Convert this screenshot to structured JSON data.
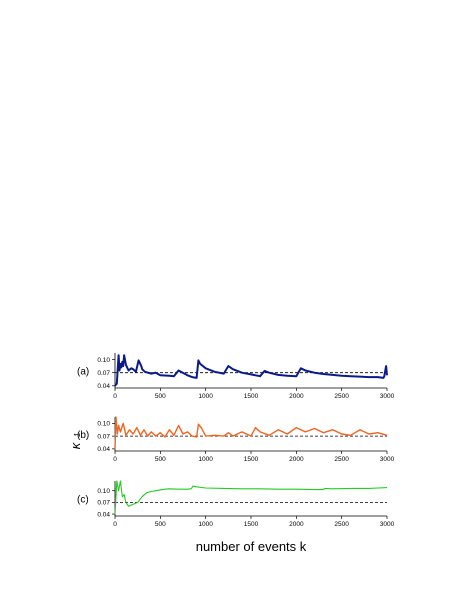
{
  "chart_data": {
    "type": "line",
    "xlabel": "number of events k",
    "ylabel": "κ",
    "ylabel_subscript": "1",
    "reference_line": {
      "value": 0.07,
      "style": "dashed",
      "color": "#000000"
    },
    "panels": [
      {
        "label": "(a)",
        "color": "#0a1a8a",
        "xlim": [
          0,
          3000
        ],
        "ylim": [
          0.035,
          0.115
        ],
        "yticks": [
          "0.04",
          "0.07",
          "0.10"
        ],
        "xticks": [
          "0",
          "500",
          "1000",
          "1500",
          "2000",
          "2500",
          "3000"
        ],
        "x": [
          0,
          20,
          40,
          50,
          60,
          70,
          80,
          90,
          100,
          120,
          150,
          180,
          200,
          230,
          260,
          290,
          300,
          330,
          400,
          450,
          500,
          600,
          650,
          700,
          800,
          850,
          900,
          920,
          940,
          1000,
          1100,
          1200,
          1250,
          1300,
          1400,
          1500,
          1600,
          1650,
          1700,
          1800,
          1900,
          2000,
          2050,
          2100,
          2200,
          2300,
          2400,
          2500,
          2600,
          2700,
          2800,
          2900,
          2960,
          2970,
          2990,
          3000
        ],
        "values": [
          0.04,
          0.045,
          0.11,
          0.075,
          0.09,
          0.082,
          0.095,
          0.085,
          0.11,
          0.088,
          0.075,
          0.08,
          0.078,
          0.072,
          0.098,
          0.085,
          0.078,
          0.072,
          0.068,
          0.07,
          0.064,
          0.063,
          0.062,
          0.075,
          0.064,
          0.06,
          0.058,
          0.098,
          0.09,
          0.08,
          0.072,
          0.068,
          0.085,
          0.078,
          0.07,
          0.066,
          0.062,
          0.074,
          0.07,
          0.065,
          0.063,
          0.062,
          0.08,
          0.075,
          0.07,
          0.067,
          0.065,
          0.063,
          0.062,
          0.061,
          0.06,
          0.06,
          0.058,
          0.062,
          0.085,
          0.064
        ]
      },
      {
        "label": "(b)",
        "color": "#f06420",
        "xlim": [
          0,
          3000
        ],
        "ylim": [
          0.035,
          0.115
        ],
        "yticks": [
          "0.04",
          "0.07",
          "0.10"
        ],
        "xticks": [
          "0",
          "500",
          "1000",
          "1500",
          "2000",
          "2500",
          "3000"
        ],
        "x": [
          0,
          10,
          25,
          40,
          60,
          90,
          120,
          160,
          200,
          240,
          280,
          320,
          360,
          400,
          450,
          500,
          550,
          600,
          650,
          700,
          750,
          800,
          850,
          900,
          920,
          950,
          1000,
          1100,
          1200,
          1250,
          1300,
          1400,
          1500,
          1550,
          1600,
          1700,
          1800,
          1900,
          2000,
          2100,
          2200,
          2300,
          2400,
          2500,
          2600,
          2700,
          2800,
          2900,
          3000
        ],
        "values": [
          0.04,
          0.115,
          0.075,
          0.095,
          0.08,
          0.1,
          0.072,
          0.085,
          0.075,
          0.09,
          0.072,
          0.085,
          0.07,
          0.08,
          0.07,
          0.078,
          0.068,
          0.085,
          0.072,
          0.095,
          0.075,
          0.08,
          0.07,
          0.068,
          0.098,
          0.09,
          0.07,
          0.072,
          0.07,
          0.078,
          0.07,
          0.08,
          0.07,
          0.09,
          0.08,
          0.072,
          0.085,
          0.075,
          0.09,
          0.08,
          0.088,
          0.078,
          0.085,
          0.075,
          0.072,
          0.085,
          0.075,
          0.078,
          0.072
        ]
      },
      {
        "label": "(c)",
        "color": "#22cc22",
        "xlim": [
          0,
          3000
        ],
        "ylim": [
          0.035,
          0.125
        ],
        "yticks": [
          "0.04",
          "0.07",
          "0.10"
        ],
        "xticks": [
          "0",
          "500",
          "1000",
          "1500",
          "2000",
          "2500",
          "3000"
        ],
        "x": [
          0,
          20,
          40,
          60,
          80,
          100,
          120,
          150,
          200,
          250,
          300,
          350,
          400,
          450,
          500,
          550,
          600,
          700,
          800,
          840,
          860,
          900,
          1000,
          1200,
          1400,
          1600,
          1800,
          2000,
          2200,
          2300,
          2310,
          2400,
          2600,
          2800,
          2900,
          3000
        ],
        "values": [
          0.04,
          0.125,
          0.1,
          0.125,
          0.085,
          0.09,
          0.07,
          0.06,
          0.065,
          0.07,
          0.085,
          0.095,
          0.098,
          0.1,
          0.102,
          0.104,
          0.105,
          0.104,
          0.104,
          0.105,
          0.112,
          0.11,
          0.107,
          0.106,
          0.105,
          0.105,
          0.104,
          0.104,
          0.103,
          0.103,
          0.106,
          0.105,
          0.106,
          0.106,
          0.107,
          0.108
        ]
      }
    ]
  }
}
